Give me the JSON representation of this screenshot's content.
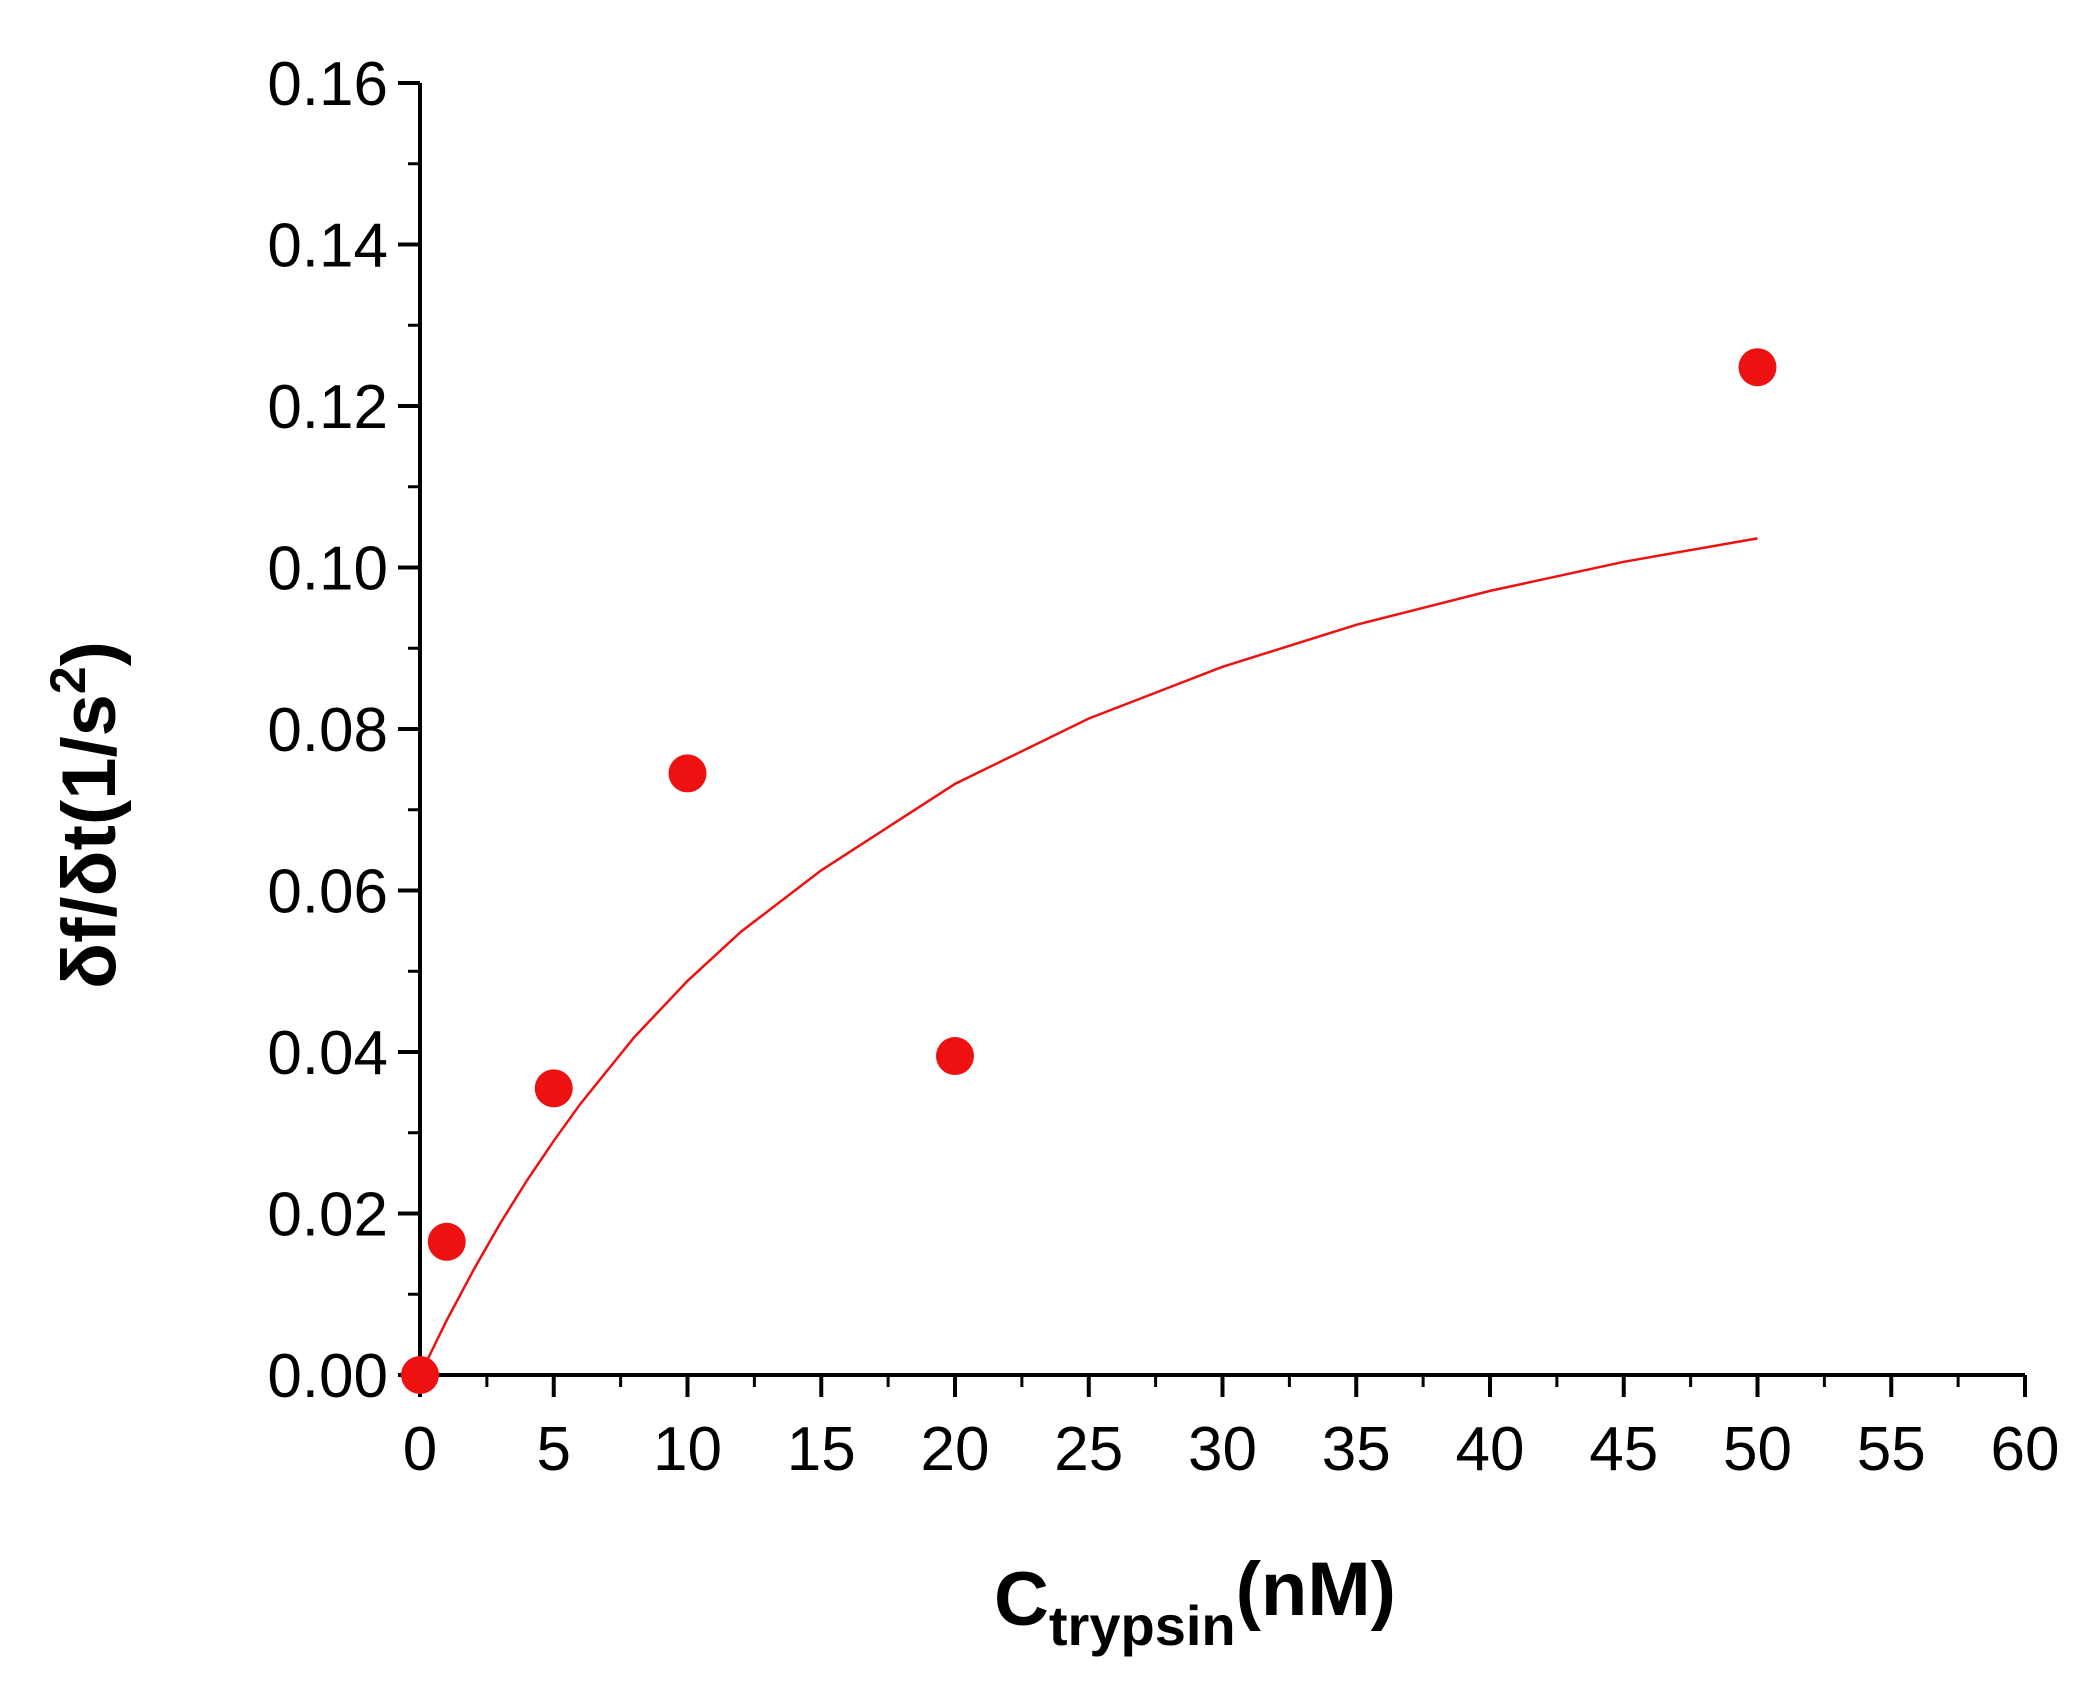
{
  "chart_data": {
    "type": "scatter",
    "xlabel": {
      "main": "C",
      "sub": "trypsin",
      "suffix": "(nM)"
    },
    "ylabel": {
      "prefix": "δf/δt",
      "unit_open": "(1/s",
      "sup": "2",
      "unit_close": ")"
    },
    "xlim": [
      0,
      60
    ],
    "ylim": [
      0,
      0.16
    ],
    "x_ticks": [
      "0",
      "5",
      "10",
      "15",
      "20",
      "25",
      "30",
      "35",
      "40",
      "45",
      "50",
      "55",
      "60"
    ],
    "y_ticks": [
      "0.00",
      "0.02",
      "0.04",
      "0.06",
      "0.08",
      "0.10",
      "0.12",
      "0.14",
      "0.16"
    ],
    "grid": false,
    "series": [
      {
        "kind": "points",
        "color": "#ee1111",
        "x": [
          0,
          1,
          5,
          10,
          20,
          50
        ],
        "y": [
          0.0,
          0.0165,
          0.0355,
          0.0745,
          0.0395,
          0.1248
        ]
      },
      {
        "kind": "fit_curve",
        "color": "#ee1111",
        "x": [
          0,
          1,
          2,
          3,
          4,
          5,
          6,
          8,
          10,
          12,
          15,
          20,
          25,
          30,
          35,
          40,
          45,
          50
        ],
        "y": [
          0.0,
          0.0068,
          0.013,
          0.0188,
          0.0241,
          0.029,
          0.0336,
          0.0418,
          0.0488,
          0.0549,
          0.0625,
          0.0732,
          0.0813,
          0.0877,
          0.0929,
          0.0971,
          0.1007,
          0.1036
        ]
      }
    ]
  }
}
